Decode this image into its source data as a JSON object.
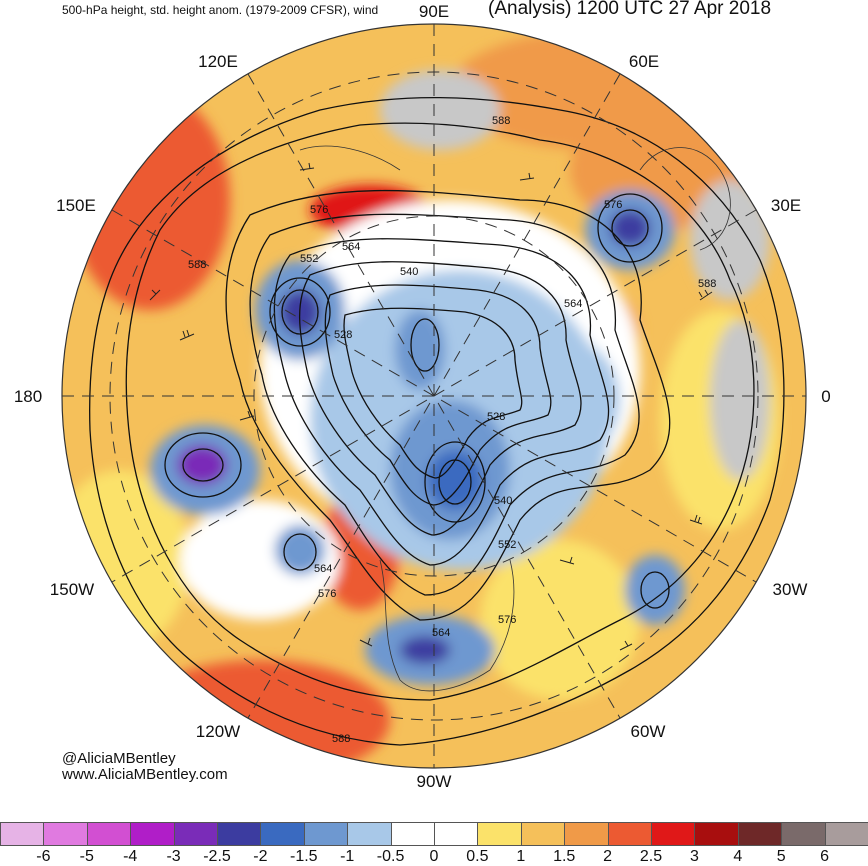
{
  "header": {
    "left_title": "500-hPa height, std. height anom. (1979-2009 CFSR), wind",
    "right_title": "(Analysis) 1200 UTC 27 Apr 2018"
  },
  "longitude_labels": [
    "90E",
    "60E",
    "120E",
    "150E",
    "30E",
    "180",
    "0",
    "150W",
    "30W",
    "120W",
    "60W",
    "90W"
  ],
  "contour_labels": [
    "588",
    "576",
    "564",
    "552",
    "540",
    "528",
    "576",
    "588",
    "564",
    "528",
    "540",
    "552",
    "564",
    "576",
    "564",
    "576",
    "588",
    "588"
  ],
  "credits": {
    "handle": "@AliciaMBentley",
    "website": "www.AliciaMBentley.com"
  },
  "colorbar": {
    "labels": [
      "-6",
      "-5",
      "-4",
      "-3",
      "-2.5",
      "-2",
      "-1.5",
      "-1",
      "-0.5",
      "0",
      "0.5",
      "1",
      "1.5",
      "2",
      "2.5",
      "3",
      "4",
      "5",
      "6"
    ],
    "colors": [
      "#e6b3e6",
      "#e07ae0",
      "#d24fd2",
      "#b01ec8",
      "#7a2cb8",
      "#3c3ca0",
      "#3a6ac0",
      "#6e98d0",
      "#a8c8e8",
      "#ffffff",
      "#ffffff",
      "#fbe26a",
      "#f5c05a",
      "#f09a48",
      "#ec5a32",
      "#e01818",
      "#a80e0e",
      "#6e2828",
      "#7a6a6a",
      "#a89c9c"
    ]
  }
}
